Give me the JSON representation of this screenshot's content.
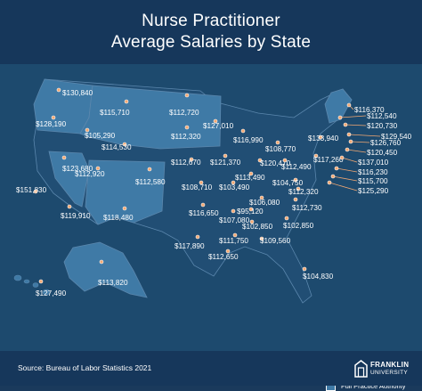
{
  "title": {
    "line1": "Nurse Practitioner",
    "line2": "Average Salaries by State"
  },
  "legend": {
    "label": "Full Practice Authority",
    "swatch_color": "#3f7aa6"
  },
  "colors": {
    "full_practice": "#3f7aa6",
    "other": "#214e74",
    "border": "#5b87ad",
    "dot": "#f2a873"
  },
  "labels": [
    {
      "state": "WA",
      "value": "$130,840"
    },
    {
      "state": "OR",
      "value": "$128,190"
    },
    {
      "state": "ID",
      "value": "$105,290"
    },
    {
      "state": "MT",
      "value": "$115,710"
    },
    {
      "state": "ND",
      "value": "$112,720"
    },
    {
      "state": "SD",
      "value": "$112,320"
    },
    {
      "state": "MN",
      "value": "$127,010"
    },
    {
      "state": "WY",
      "value": "$114,530"
    },
    {
      "state": "NV",
      "value": "$123,680"
    },
    {
      "state": "UT",
      "value": "$112,920"
    },
    {
      "state": "CO",
      "value": "$112,580"
    },
    {
      "state": "NE",
      "value": "$112,670"
    },
    {
      "state": "IA",
      "value": "$121,370"
    },
    {
      "state": "WI",
      "value": "$116,990"
    },
    {
      "state": "MI",
      "value": "$108,770"
    },
    {
      "state": "CA",
      "value": "$151,830"
    },
    {
      "state": "AZ",
      "value": "$119,910"
    },
    {
      "state": "NM",
      "value": "$118,480"
    },
    {
      "state": "KS",
      "value": "$108,710"
    },
    {
      "state": "MO",
      "value": "$103,490"
    },
    {
      "state": "IL",
      "value": "$113,490"
    },
    {
      "state": "IN",
      "value": "$120,470"
    },
    {
      "state": "OH",
      "value": "$112,490"
    },
    {
      "state": "OK",
      "value": "$116,650"
    },
    {
      "state": "AR",
      "value": "$107,080"
    },
    {
      "state": "TN",
      "value": "$95,120"
    },
    {
      "state": "KY",
      "value": "$106,080"
    },
    {
      "state": "TX",
      "value": "$117,890"
    },
    {
      "state": "MS",
      "value": "$111,750"
    },
    {
      "state": "AL",
      "value": "$102,850"
    },
    {
      "state": "GA",
      "value": "$109,560"
    },
    {
      "state": "LA",
      "value": "$112,650"
    },
    {
      "state": "FL",
      "value": "$104,830"
    },
    {
      "state": "SC",
      "value": "$102,850"
    },
    {
      "state": "NC",
      "value": "$112,730"
    },
    {
      "state": "VA",
      "value": "$112,320"
    },
    {
      "state": "WV",
      "value": "$104,750"
    },
    {
      "state": "PA",
      "value": "$117,260"
    },
    {
      "state": "NY",
      "value": "$133,940"
    },
    {
      "state": "ME",
      "value": "$116,370"
    },
    {
      "state": "VT",
      "value": "$112,540"
    },
    {
      "state": "NH",
      "value": "$120,730"
    },
    {
      "state": "MA",
      "value": "$129,540"
    },
    {
      "state": "RI",
      "value": "$126,760"
    },
    {
      "state": "CT",
      "value": "$120,450"
    },
    {
      "state": "NJ",
      "value": "$137,010"
    },
    {
      "state": "DE",
      "value": "$116,230"
    },
    {
      "state": "MD",
      "value": "$115,700"
    },
    {
      "state": "DC",
      "value": "$125,290"
    },
    {
      "state": "AK",
      "value": "$113,820"
    },
    {
      "state": "HI",
      "value": "$127,490"
    }
  ],
  "footer": {
    "source": "Source: Bureau of Labor Statistics 2021",
    "logo_line1": "FRANKLIN",
    "logo_line2": "UNIVERSITY"
  }
}
